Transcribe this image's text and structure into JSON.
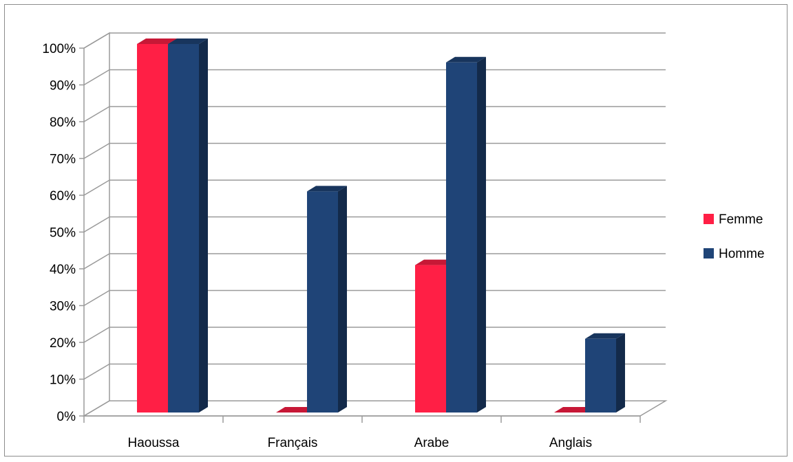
{
  "chart_data": {
    "type": "bar",
    "categories": [
      "Haoussa",
      "Français",
      "Arabe",
      "Anglais"
    ],
    "series": [
      {
        "name": "Femme",
        "color": "#ff1f45",
        "values": [
          100,
          0,
          40,
          0
        ]
      },
      {
        "name": "Homme",
        "color": "#1f4477",
        "values": [
          100,
          60,
          95,
          20
        ]
      }
    ],
    "y_ticks": [
      "0%",
      "10%",
      "20%",
      "30%",
      "40%",
      "50%",
      "60%",
      "70%",
      "80%",
      "90%",
      "100%"
    ],
    "ylim": [
      0,
      100
    ],
    "y_unit": "%",
    "grid": true,
    "legend_position": "right",
    "style": "3d-clustered-column"
  }
}
